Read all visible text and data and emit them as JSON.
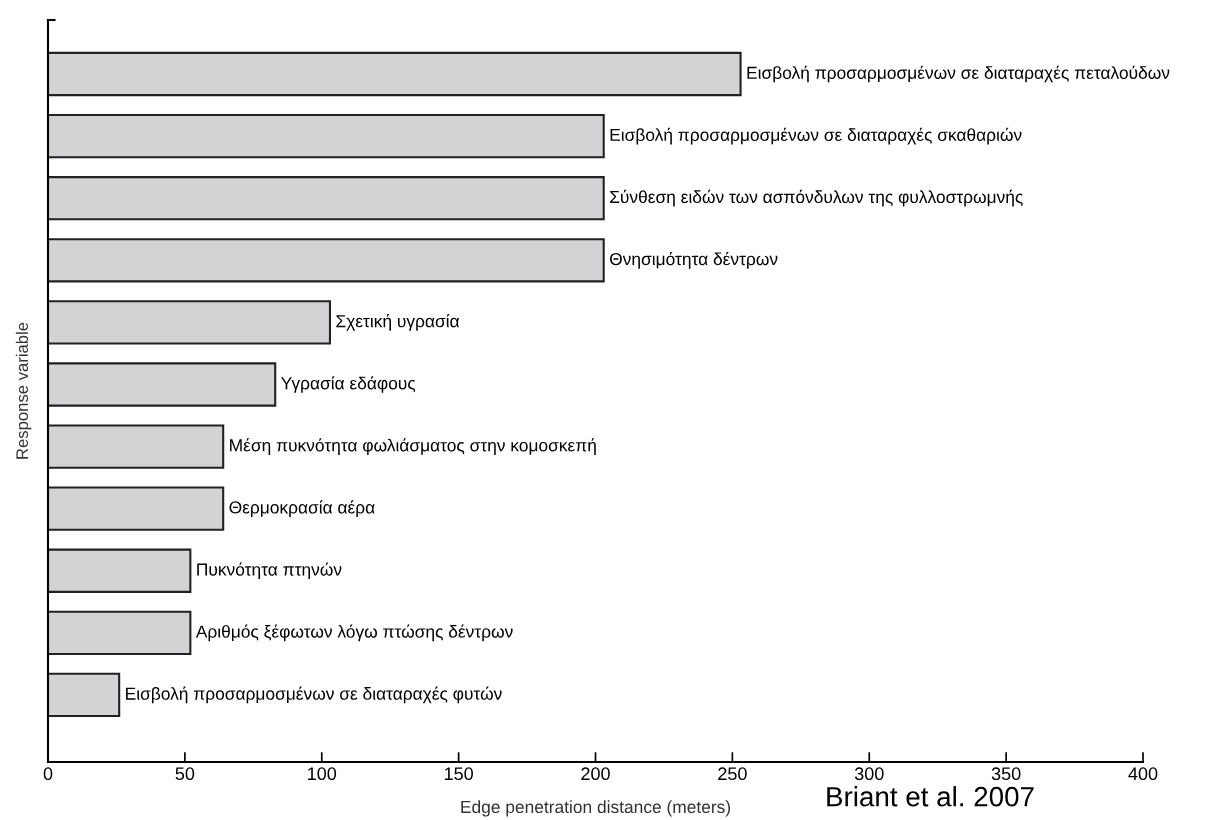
{
  "chart_data": {
    "type": "bar",
    "orientation": "horizontal",
    "xlabel": "Edge penetration distance (meters)",
    "ylabel": "Response variable",
    "categories": [
      "Εισβολή προσαρμοσμένων σε διαταραχές πεταλούδων",
      "Εισβολή προσαρμοσμένων σε διαταραχές σκαθαριών",
      "Σύνθεση ειδών των ασπόνδυλων της φυλλοστρωμνής",
      "Θνησιμότητα δέντρων",
      "Σχετική υγρασία",
      "Υγρασία εδάφους",
      "Μέση πυκνότητα φωλιάσματος στην κομοσκεπή",
      "Θερμοκρασία αέρα",
      "Πυκνότητα πτηνών",
      "Αριθμός ξέφωτων λόγω πτώσης δέντρων",
      "Εισβολή προσαρμοσμένων σε διαταραχές φυτών"
    ],
    "values": [
      253,
      203,
      203,
      203,
      103,
      83,
      64,
      64,
      52,
      52,
      26
    ],
    "color": "#d3d3d5",
    "xlim": [
      0,
      400
    ],
    "xticks": [
      0,
      50,
      100,
      150,
      200,
      250,
      300,
      350,
      400
    ],
    "tick_labels": "x",
    "grid": false,
    "legend": false,
    "annotations": [
      "Briant et al. 2007"
    ]
  }
}
